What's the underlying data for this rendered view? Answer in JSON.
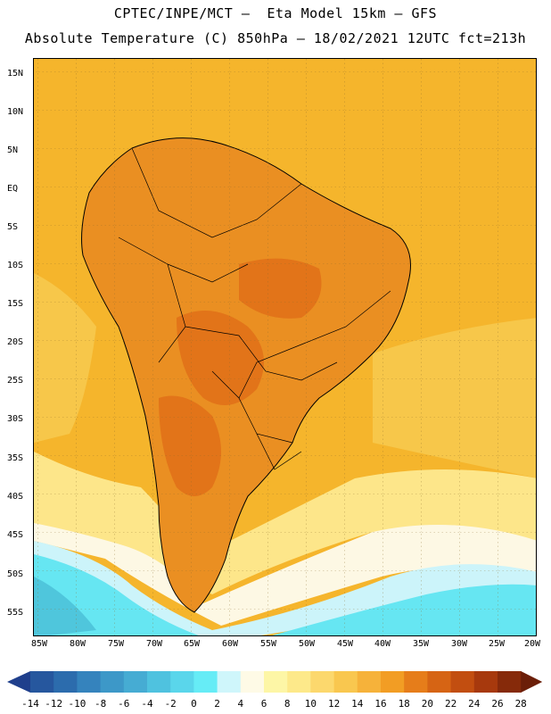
{
  "header": {
    "line1": "CPTEC/INPE/MCT –  Eta Model 15km – GFS",
    "line2": "Absolute Temperature (C) 850hPa – 18/02/2021 12UTC fct=213h"
  },
  "axes": {
    "lat_labels": [
      "15N",
      "10N",
      "5N",
      "EQ",
      "5S",
      "10S",
      "15S",
      "20S",
      "25S",
      "30S",
      "35S",
      "40S",
      "45S",
      "50S",
      "55S"
    ],
    "lon_labels": [
      "85W",
      "80W",
      "75W",
      "70W",
      "65W",
      "60W",
      "55W",
      "50W",
      "45W",
      "40W",
      "35W",
      "30W",
      "25W",
      "20W"
    ]
  },
  "colorbar": {
    "labels": [
      "-14",
      "-12",
      "-10",
      "-8",
      "-6",
      "-4",
      "-2",
      "0",
      "2",
      "4",
      "6",
      "8",
      "10",
      "12",
      "14",
      "16",
      "18",
      "20",
      "22",
      "24",
      "26",
      "28"
    ],
    "colors": [
      "#1f3f8c",
      "#26579e",
      "#2c6cad",
      "#3583bd",
      "#3d98c8",
      "#46acd3",
      "#4fc2df",
      "#5ad6eb",
      "#66ecf6",
      "#cff6fb",
      "#fefae6",
      "#fdf6a6",
      "#fde98a",
      "#fcd86d",
      "#f9c74f",
      "#f6b23a",
      "#f29d24",
      "#e67d1a",
      "#d66414",
      "#c24e10",
      "#a7390d",
      "#862a0a",
      "#6b1e08"
    ]
  },
  "map": {
    "colors": {
      "ocean_warm": "#f5b52c",
      "ocean_mid": "#f7c74a",
      "land_hot": "#ea8f22",
      "land_hotter": "#e27419",
      "yellow": "#fde68a",
      "pale": "#fdf8e4",
      "ice": "#ccf4fa",
      "cyan": "#66e6f2",
      "cyan_deep": "#4fc6dc"
    }
  }
}
